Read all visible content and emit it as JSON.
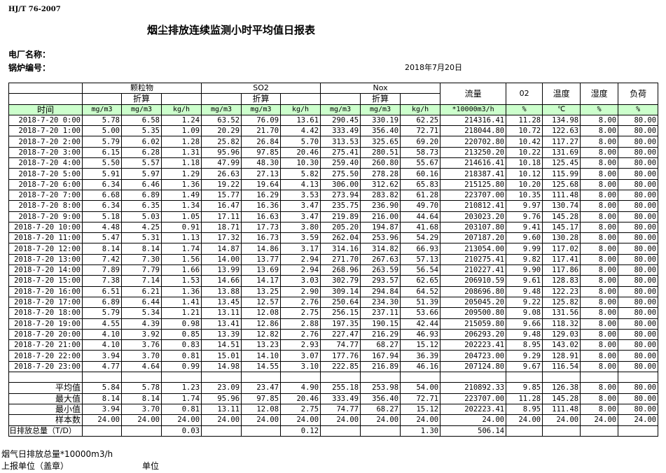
{
  "standard": "HJ/T  76-2007",
  "title": "烟尘排放连续监测小时平均值日报表",
  "plant_label": "电厂名称：",
  "boiler_label": "锅炉编号：",
  "date": "2018年7月20日",
  "header": {
    "groups": [
      "颗粒物",
      "SO2",
      "Nox"
    ],
    "converted": "折算",
    "single": [
      "流量",
      "02",
      "温度",
      "湿度",
      "负荷"
    ],
    "time_label": "时间",
    "units": [
      "mg/m3",
      "mg/m3",
      "kg/h",
      "mg/m3",
      "mg/m3",
      "kg/h",
      "mg/m3",
      "mg/m3",
      "kg/h",
      "*10000m3/h",
      "%",
      "℃",
      "%",
      "%"
    ]
  },
  "rows": [
    [
      "2018-7-20 0:00",
      "5.78",
      "6.58",
      "1.24",
      "63.52",
      "76.09",
      "13.61",
      "290.45",
      "330.19",
      "62.25",
      "214316.41",
      "11.28",
      "134.98",
      "8.00",
      "80.00"
    ],
    [
      "2018-7-20 1:00",
      "5.00",
      "5.35",
      "1.09",
      "20.29",
      "21.70",
      "4.42",
      "333.49",
      "356.40",
      "72.71",
      "218044.80",
      "10.72",
      "122.63",
      "8.00",
      "80.00"
    ],
    [
      "2018-7-20 2:00",
      "5.79",
      "6.02",
      "1.28",
      "25.82",
      "26.84",
      "5.70",
      "313.53",
      "325.65",
      "69.20",
      "220702.80",
      "10.42",
      "117.27",
      "8.00",
      "80.00"
    ],
    [
      "2018-7-20 3:00",
      "6.15",
      "6.28",
      "1.31",
      "95.96",
      "97.85",
      "20.46",
      "275.41",
      "280.51",
      "58.73",
      "213250.20",
      "10.22",
      "131.69",
      "8.00",
      "80.00"
    ],
    [
      "2018-7-20 4:00",
      "5.50",
      "5.57",
      "1.18",
      "47.99",
      "48.30",
      "10.30",
      "259.40",
      "260.80",
      "55.67",
      "214616.41",
      "10.18",
      "125.45",
      "8.00",
      "80.00"
    ],
    [
      "2018-7-20 5:00",
      "5.91",
      "5.97",
      "1.29",
      "26.63",
      "27.13",
      "5.82",
      "275.50",
      "278.28",
      "60.16",
      "218387.41",
      "10.12",
      "115.99",
      "8.00",
      "80.00"
    ],
    [
      "2018-7-20 6:00",
      "6.34",
      "6.46",
      "1.36",
      "19.22",
      "19.64",
      "4.13",
      "306.00",
      "312.62",
      "65.83",
      "215125.80",
      "10.20",
      "125.68",
      "8.00",
      "80.00"
    ],
    [
      "2018-7-20 7:00",
      "6.68",
      "6.89",
      "1.49",
      "15.77",
      "16.29",
      "3.53",
      "273.94",
      "283.82",
      "61.28",
      "223707.00",
      "10.35",
      "111.48",
      "8.00",
      "80.00"
    ],
    [
      "2018-7-20 8:00",
      "6.34",
      "6.35",
      "1.34",
      "16.47",
      "16.36",
      "3.47",
      "235.75",
      "236.90",
      "49.70",
      "210812.41",
      "9.97",
      "130.74",
      "8.00",
      "80.00"
    ],
    [
      "2018-7-20 9:00",
      "5.18",
      "5.03",
      "1.05",
      "17.11",
      "16.63",
      "3.47",
      "219.89",
      "216.00",
      "44.64",
      "203023.20",
      "9.76",
      "145.28",
      "8.00",
      "80.00"
    ],
    [
      "2018-7-20 10:00",
      "4.48",
      "4.25",
      "0.91",
      "18.71",
      "17.73",
      "3.80",
      "205.20",
      "194.87",
      "41.68",
      "203107.80",
      "9.41",
      "145.17",
      "8.00",
      "80.00"
    ],
    [
      "2018-7-20 11:00",
      "5.47",
      "5.31",
      "1.13",
      "17.32",
      "16.73",
      "3.59",
      "262.04",
      "253.96",
      "54.29",
      "207187.20",
      "9.60",
      "130.28",
      "8.00",
      "80.00"
    ],
    [
      "2018-7-20 12:00",
      "8.14",
      "8.14",
      "1.74",
      "14.87",
      "14.86",
      "3.17",
      "314.16",
      "314.82",
      "66.93",
      "213054.00",
      "9.99",
      "117.02",
      "8.00",
      "80.00"
    ],
    [
      "2018-7-20 13:00",
      "7.42",
      "7.30",
      "1.56",
      "14.00",
      "13.77",
      "2.94",
      "271.70",
      "267.63",
      "57.13",
      "210275.41",
      "9.82",
      "117.41",
      "8.00",
      "80.00"
    ],
    [
      "2018-7-20 14:00",
      "7.89",
      "7.79",
      "1.66",
      "13.99",
      "13.69",
      "2.94",
      "268.96",
      "263.59",
      "56.54",
      "210227.41",
      "9.90",
      "117.86",
      "8.00",
      "80.00"
    ],
    [
      "2018-7-20 15:00",
      "7.38",
      "7.14",
      "1.53",
      "14.66",
      "14.17",
      "3.03",
      "302.79",
      "293.57",
      "62.65",
      "206910.59",
      "9.61",
      "128.83",
      "8.00",
      "80.00"
    ],
    [
      "2018-7-20 16:00",
      "6.51",
      "6.21",
      "1.36",
      "13.88",
      "13.25",
      "2.90",
      "309.14",
      "294.84",
      "64.52",
      "208696.80",
      "9.48",
      "122.23",
      "8.00",
      "80.00"
    ],
    [
      "2018-7-20 17:00",
      "6.89",
      "6.44",
      "1.41",
      "13.45",
      "12.57",
      "2.76",
      "250.64",
      "234.30",
      "51.39",
      "205045.20",
      "9.22",
      "125.82",
      "8.00",
      "80.00"
    ],
    [
      "2018-7-20 18:00",
      "5.79",
      "5.34",
      "1.21",
      "13.11",
      "12.08",
      "2.75",
      "256.15",
      "237.11",
      "53.66",
      "209500.80",
      "9.08",
      "131.56",
      "8.00",
      "80.00"
    ],
    [
      "2018-7-20 19:00",
      "4.55",
      "4.39",
      "0.98",
      "13.41",
      "12.86",
      "2.88",
      "197.35",
      "190.15",
      "42.44",
      "215059.80",
      "9.66",
      "118.32",
      "8.00",
      "80.00"
    ],
    [
      "2018-7-20 20:00",
      "4.10",
      "3.92",
      "0.85",
      "13.39",
      "12.82",
      "2.76",
      "227.47",
      "216.29",
      "46.93",
      "206293.20",
      "9.48",
      "129.03",
      "8.00",
      "80.00"
    ],
    [
      "2018-7-20 21:00",
      "4.10",
      "3.76",
      "0.83",
      "14.51",
      "13.23",
      "2.93",
      "74.77",
      "68.27",
      "15.12",
      "202223.41",
      "8.95",
      "143.02",
      "8.00",
      "80.00"
    ],
    [
      "2018-7-20 22:00",
      "3.94",
      "3.70",
      "0.81",
      "15.01",
      "14.10",
      "3.07",
      "177.76",
      "167.94",
      "36.39",
      "204723.00",
      "9.29",
      "128.91",
      "8.00",
      "80.00"
    ],
    [
      "2018-7-20 23:00",
      "4.77",
      "4.64",
      "0.99",
      "14.98",
      "14.55",
      "3.10",
      "222.85",
      "216.89",
      "46.16",
      "207124.80",
      "9.67",
      "116.54",
      "8.00",
      "80.00"
    ]
  ],
  "stats": [
    [
      "平均值",
      "5.84",
      "5.78",
      "1.23",
      "23.09",
      "23.47",
      "4.90",
      "255.18",
      "253.98",
      "54.00",
      "210892.33",
      "9.85",
      "126.38",
      "8.00",
      "80.00"
    ],
    [
      "最大值",
      "8.14",
      "8.14",
      "1.74",
      "95.96",
      "97.85",
      "20.46",
      "333.49",
      "356.40",
      "72.71",
      "223707.00",
      "11.28",
      "145.28",
      "8.00",
      "80.00"
    ],
    [
      "最小值",
      "3.94",
      "3.70",
      "0.81",
      "13.11",
      "12.08",
      "2.75",
      "74.77",
      "68.27",
      "15.12",
      "202223.41",
      "8.95",
      "111.48",
      "8.00",
      "80.00"
    ],
    [
      "样本数",
      "24.00",
      "24.00",
      "24.00",
      "24.00",
      "24.00",
      "24.00",
      "24.00",
      "24.00",
      "24.00",
      "24.00",
      "24.00",
      "24.00",
      "24.00",
      "24.00"
    ]
  ],
  "daily_total": [
    "日排放总量（T/D）",
    "",
    "",
    "0.03",
    "",
    "",
    "0.12",
    "",
    "",
    "1.30",
    "506.14",
    "",
    "",
    "",
    ""
  ],
  "footer": {
    "flue_gas_total": "烟气日排放总量*10000m3/h",
    "reporting_unit": "上报单位（盖章）",
    "unit": "单位"
  },
  "colors": {
    "unit_row_bg": "#ccffcc",
    "border": "#000000"
  }
}
